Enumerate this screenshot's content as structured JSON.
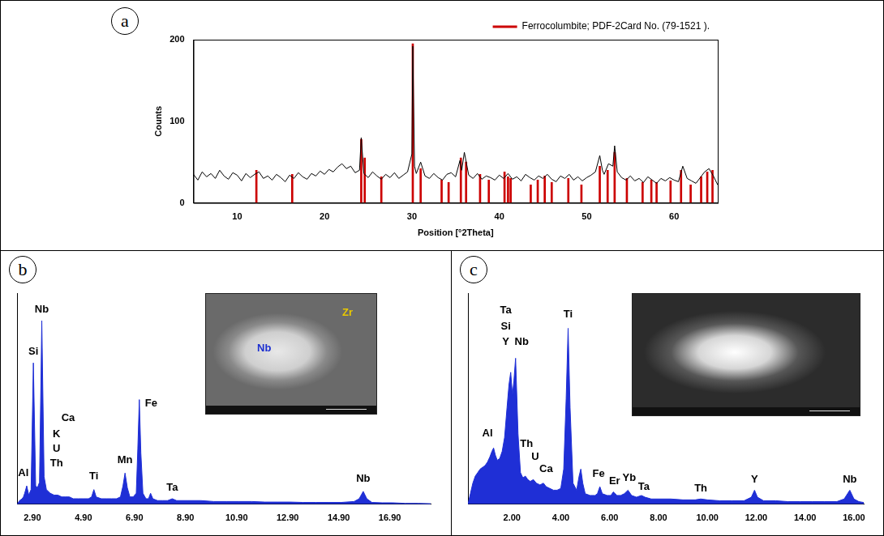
{
  "chart_data": [
    {
      "panel": "a",
      "type": "line",
      "xlabel": "Position [°2Theta]",
      "ylabel": "Counts",
      "xlim": [
        5,
        65
      ],
      "xticks": [
        10,
        20,
        30,
        40,
        50,
        60
      ],
      "ylim": [
        0,
        200
      ],
      "yticks": [
        0,
        100,
        200
      ],
      "grid": false,
      "legend": "upper right",
      "series": [
        {
          "type": "line",
          "color": "#000000",
          "x": [
            5,
            5.5,
            6,
            6.5,
            7,
            7.5,
            8,
            8.5,
            9,
            9.5,
            10,
            10.5,
            11,
            11.5,
            12,
            12.5,
            13,
            13.5,
            14,
            14.5,
            15,
            15.5,
            16,
            16.5,
            17,
            17.5,
            18,
            18.5,
            19,
            19.5,
            20,
            20.5,
            21,
            21.5,
            22,
            22.5,
            23,
            23.5,
            24,
            24.2,
            24.5,
            25,
            25.5,
            26,
            26.5,
            27,
            27.5,
            28,
            28.5,
            29,
            29.5,
            30,
            30.1,
            30.3,
            30.5,
            31,
            31.5,
            32,
            32.5,
            33,
            33.5,
            34,
            34.5,
            35,
            35.5,
            35.7,
            36,
            36.5,
            37,
            37.5,
            38,
            38.5,
            39,
            39.5,
            40,
            40.5,
            41,
            41.5,
            42,
            42.5,
            43,
            43.5,
            44,
            44.5,
            45,
            45.5,
            46,
            46.5,
            47,
            47.5,
            48,
            48.5,
            49,
            49.5,
            50,
            50.5,
            51,
            51.5,
            51.8,
            52,
            52.5,
            53,
            53.2,
            53.5,
            54,
            54.5,
            55,
            55.5,
            56,
            56.5,
            57,
            57.5,
            58,
            58.5,
            59,
            59.5,
            60,
            60.5,
            61,
            61.5,
            62,
            62.5,
            63,
            63.5,
            64,
            64.5,
            65
          ],
          "values": [
            35,
            28,
            38,
            32,
            36,
            30,
            40,
            33,
            29,
            37,
            34,
            27,
            36,
            31,
            35,
            38,
            30,
            33,
            28,
            35,
            31,
            26,
            34,
            30,
            37,
            32,
            29,
            36,
            33,
            39,
            35,
            41,
            38,
            44,
            48,
            42,
            45,
            37,
            40,
            80,
            36,
            31,
            38,
            33,
            29,
            35,
            31,
            37,
            30,
            34,
            38,
            60,
            192,
            45,
            36,
            50,
            33,
            30,
            36,
            31,
            28,
            35,
            37,
            32,
            52,
            40,
            62,
            34,
            30,
            36,
            29,
            33,
            31,
            28,
            34,
            30,
            36,
            29,
            32,
            27,
            35,
            31,
            28,
            33,
            30,
            35,
            29,
            26,
            33,
            30,
            35,
            28,
            32,
            27,
            31,
            34,
            38,
            58,
            40,
            35,
            48,
            45,
            70,
            38,
            31,
            28,
            33,
            27,
            30,
            25,
            32,
            28,
            24,
            30,
            27,
            31,
            28,
            26,
            45,
            30,
            27,
            24,
            31,
            38,
            42,
            33,
            22
          ]
        },
        {
          "name": "Ferrocolumbite; PDF-2Card No. (79-1521 ).",
          "type": "bar",
          "color": "#cc0000",
          "x": [
            12.2,
            16.3,
            24.2,
            24.6,
            26.5,
            30.1,
            31,
            33.4,
            34.2,
            35.6,
            36.2,
            37.8,
            38.8,
            40.6,
            41,
            41.3,
            43.6,
            44.4,
            45.2,
            46,
            47.9,
            49.4,
            51.5,
            52.4,
            53.2,
            54.6,
            56.4,
            57.4,
            58,
            59.6,
            60.8,
            61.9,
            63.1,
            63.8,
            64.4
          ],
          "values": [
            40,
            35,
            78,
            55,
            32,
            195,
            42,
            28,
            25,
            55,
            50,
            35,
            28,
            38,
            32,
            30,
            22,
            28,
            33,
            25,
            30,
            22,
            45,
            40,
            62,
            30,
            25,
            28,
            25,
            27,
            40,
            22,
            32,
            38,
            40
          ]
        }
      ]
    },
    {
      "panel": "b",
      "type": "area",
      "color": "#1f2fd6",
      "grid": false,
      "tick_labels": "x",
      "xlim": [
        2.3,
        18.5
      ],
      "xticks": [
        {
          "value": 2.9,
          "label": "2.90"
        },
        {
          "value": 4.9,
          "label": "4.90"
        },
        {
          "value": 6.9,
          "label": "6.90"
        },
        {
          "value": 8.9,
          "label": "8.90"
        },
        {
          "value": 10.9,
          "label": "10.90"
        },
        {
          "value": 12.9,
          "label": "12.90"
        },
        {
          "value": 14.9,
          "label": "14.90"
        },
        {
          "value": 16.9,
          "label": "16.90"
        }
      ],
      "ylim": [
        0,
        115
      ],
      "x": [
        2.3,
        2.4,
        2.5,
        2.55,
        2.6,
        2.68,
        2.76,
        2.85,
        2.94,
        3.03,
        3.1,
        3.18,
        3.27,
        3.36,
        3.45,
        3.6,
        3.75,
        3.9,
        4.05,
        4.2,
        4.35,
        4.5,
        4.7,
        4.9,
        5.1,
        5.22,
        5.31,
        5.4,
        5.6,
        5.8,
        6,
        6.2,
        6.35,
        6.45,
        6.53,
        6.62,
        6.72,
        6.85,
        6.97,
        7.03,
        7.09,
        7.15,
        7.23,
        7.35,
        7.45,
        7.53,
        7.62,
        7.8,
        8,
        8.2,
        8.38,
        8.55,
        9,
        9.5,
        10,
        10.5,
        11,
        11.5,
        12,
        12.5,
        13,
        13.5,
        14,
        14.5,
        15,
        15.5,
        15.7,
        15.86,
        16,
        16.2,
        16.6,
        17,
        17.5,
        18,
        18.5
      ],
      "values": [
        0,
        2,
        3,
        4,
        6,
        10,
        5,
        8,
        77,
        10,
        9,
        12,
        100,
        15,
        8,
        6,
        5,
        5,
        4,
        4,
        4,
        3,
        3,
        3,
        3,
        4,
        8,
        4,
        3,
        3,
        3,
        3,
        4,
        10,
        17,
        9,
        4,
        4,
        6,
        30,
        57,
        28,
        6,
        3,
        3,
        6,
        3,
        2,
        2,
        2,
        3,
        2,
        2,
        2,
        1.5,
        1.5,
        1.5,
        1.5,
        1.2,
        1.2,
        1.2,
        1,
        1,
        1,
        1,
        1.5,
        3,
        7,
        3,
        1,
        0.8,
        0.8,
        0.5,
        0.5,
        0.3
      ],
      "peak_labels": [
        {
          "text": "Al",
          "x": 2.55,
          "y": 17
        },
        {
          "text": "Si",
          "x": 2.94,
          "y": 83
        },
        {
          "text": "Nb",
          "x": 3.27,
          "y": 106
        },
        {
          "text": "Th",
          "x": 3.85,
          "y": 22
        },
        {
          "text": "U",
          "x": 3.85,
          "y": 30
        },
        {
          "text": "K",
          "x": 3.85,
          "y": 38
        },
        {
          "text": "Ca",
          "x": 4.3,
          "y": 47
        },
        {
          "text": "Ti",
          "x": 5.31,
          "y": 15
        },
        {
          "text": "Mn",
          "x": 6.53,
          "y": 24
        },
        {
          "text": "Fe",
          "x": 7.55,
          "y": 55
        },
        {
          "text": "Ta",
          "x": 8.38,
          "y": 9
        },
        {
          "text": "Nb",
          "x": 15.86,
          "y": 14
        }
      ],
      "inset": {
        "labels": [
          {
            "text": "Nb",
            "color": "#1c2fd0"
          },
          {
            "text": "Zr",
            "color": "#e8c800"
          }
        ]
      }
    },
    {
      "panel": "c",
      "type": "area",
      "color": "#1f2fd6",
      "grid": false,
      "tick_labels": "x",
      "xlim": [
        0.2,
        16.4
      ],
      "xticks": [
        {
          "value": 2,
          "label": "2.00"
        },
        {
          "value": 4,
          "label": "4.00"
        },
        {
          "value": 6,
          "label": "6.00"
        },
        {
          "value": 8,
          "label": "8.00"
        },
        {
          "value": 10,
          "label": "10.00"
        },
        {
          "value": 12,
          "label": "12.00"
        },
        {
          "value": 14,
          "label": "14.00"
        },
        {
          "value": 16,
          "label": "16.00"
        }
      ],
      "ylim": [
        0,
        120
      ],
      "x": [
        0.2,
        0.3,
        0.4,
        0.5,
        0.6,
        0.7,
        0.8,
        0.9,
        1,
        1.1,
        1.18,
        1.25,
        1.32,
        1.4,
        1.5,
        1.6,
        1.7,
        1.8,
        1.88,
        1.95,
        2.02,
        2.08,
        2.15,
        2.25,
        2.35,
        2.45,
        2.55,
        2.65,
        2.75,
        2.88,
        3,
        3.15,
        3.29,
        3.4,
        3.55,
        3.7,
        3.85,
        4,
        4.12,
        4.22,
        4.3,
        4.38,
        4.5,
        4.65,
        4.75,
        4.82,
        4.9,
        5,
        5.2,
        5.4,
        5.5,
        5.6,
        5.7,
        5.9,
        6.05,
        6.15,
        6.3,
        6.45,
        6.6,
        6.75,
        6.9,
        7.1,
        7.3,
        7.45,
        7.7,
        8,
        8.5,
        9,
        9.5,
        9.73,
        10,
        10.5,
        11,
        11.5,
        11.8,
        11.93,
        12.05,
        12.3,
        12.8,
        13.3,
        13.8,
        14.3,
        14.8,
        15.3,
        15.6,
        15.83,
        16,
        16.2,
        16.4
      ],
      "values": [
        0,
        6,
        12,
        16,
        18,
        20,
        21,
        22,
        24,
        27,
        30,
        32,
        28,
        25,
        26,
        30,
        38,
        55,
        68,
        75,
        62,
        70,
        83,
        40,
        18,
        15,
        16,
        14,
        13,
        14,
        12,
        11,
        12,
        10,
        9,
        8,
        8,
        9,
        20,
        60,
        100,
        55,
        12,
        8,
        16,
        20,
        12,
        6,
        5,
        5,
        6,
        10,
        6,
        5,
        5,
        7,
        5,
        5,
        6,
        8,
        5,
        4,
        5,
        4,
        3,
        3,
        3,
        2.5,
        2.5,
        3,
        2.5,
        2,
        2,
        2,
        4,
        8,
        4,
        2,
        2,
        1.5,
        1.5,
        1.5,
        1.5,
        1.5,
        3,
        8,
        3,
        1.5,
        1
      ],
      "peak_labels": [
        {
          "text": "Al",
          "x": 1,
          "y": 40
        },
        {
          "text": "Ta",
          "x": 1.75,
          "y": 110
        },
        {
          "text": "Si",
          "x": 1.75,
          "y": 101
        },
        {
          "text": "Y",
          "x": 1.75,
          "y": 92
        },
        {
          "text": "Nb",
          "x": 2.4,
          "y": 92
        },
        {
          "text": "Th",
          "x": 2.6,
          "y": 34
        },
        {
          "text": "U",
          "x": 2.95,
          "y": 27
        },
        {
          "text": "Ca",
          "x": 3.4,
          "y": 20
        },
        {
          "text": "Ti",
          "x": 4.3,
          "y": 108
        },
        {
          "text": "Fe",
          "x": 5.55,
          "y": 17
        },
        {
          "text": "Er",
          "x": 6.2,
          "y": 13
        },
        {
          "text": "Yb",
          "x": 6.8,
          "y": 15
        },
        {
          "text": "Ta",
          "x": 7.4,
          "y": 10
        },
        {
          "text": "Th",
          "x": 9.73,
          "y": 9
        },
        {
          "text": "Y",
          "x": 11.93,
          "y": 14
        },
        {
          "text": "Nb",
          "x": 15.83,
          "y": 14
        }
      ]
    }
  ]
}
